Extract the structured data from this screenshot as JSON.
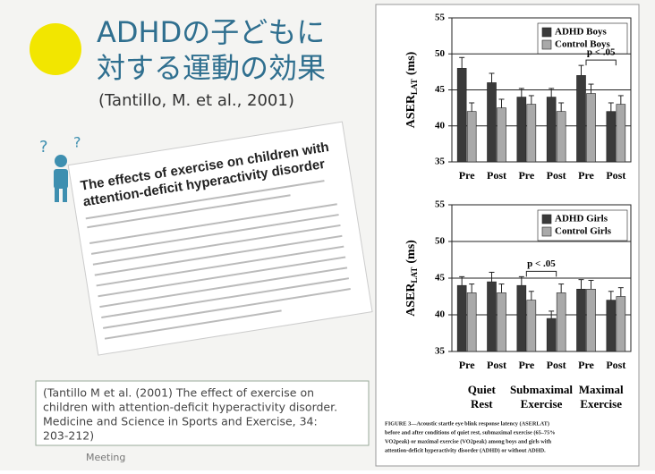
{
  "slide": {
    "title_lines": [
      "ADHDの子どもに",
      "対する運動の効果"
    ],
    "source": "(Tantillo, M. et al.,  2001)",
    "paper_title_lines": [
      "The effects of exercise on children with",
      "attention-deficit hyperactivity disorder"
    ],
    "citation_lines": [
      "(Tantillo M et al. (2001) The effect of exercise on",
      "children with attention-deficit hyperactivity disorder.",
      "Medicine and Science in Sports and Exercise, 34:",
      "203-212)"
    ],
    "footer": "Meeting",
    "figure_caption_lines": [
      "FIGURE 3—Acoustic startle eye blink response latency (ASERLAT)",
      "before and after conditions of quiet rest, submaximal exercise (65–75%",
      "VO2peak) or maximal exercise (VO2peak) among boys and girls with",
      "attention-deficit hyperactivity disorder (ADHD) or without ADHD."
    ]
  },
  "chart_data": [
    {
      "type": "bar",
      "ylabel": "ASER",
      "ylabel_sub": "LAT",
      "ylabel_unit": "(ms)",
      "categories": [
        "Pre",
        "Post",
        "Pre",
        "Post",
        "Pre",
        "Post"
      ],
      "series": [
        {
          "name": "ADHD Boys",
          "color": "#3a3a3a",
          "values": [
            48,
            46,
            44,
            44,
            47,
            42
          ],
          "errors": [
            1.5,
            1.3,
            1.2,
            1.2,
            1.4,
            1.2
          ]
        },
        {
          "name": "Control Boys",
          "color": "#a9a9a9",
          "values": [
            42,
            42.5,
            43,
            42,
            44.5,
            43
          ],
          "errors": [
            1.2,
            1.2,
            1.2,
            1.2,
            1.3,
            1.2
          ]
        }
      ],
      "ylim": [
        35,
        55
      ],
      "yticks": [
        35,
        40,
        45,
        50,
        55
      ],
      "grid": true,
      "legend": "upper right",
      "annotation": "p < .05"
    },
    {
      "type": "bar",
      "ylabel": "ASER",
      "ylabel_sub": "LAT",
      "ylabel_unit": "(ms)",
      "categories": [
        "Pre",
        "Post",
        "Pre",
        "Post",
        "Pre",
        "Post"
      ],
      "groups": [
        [
          "Quiet",
          "Rest"
        ],
        [
          "Submaximal",
          "Exercise"
        ],
        [
          "Maximal",
          "Exercise"
        ]
      ],
      "series": [
        {
          "name": "ADHD Girls",
          "color": "#3a3a3a",
          "values": [
            44,
            44.5,
            44,
            39.5,
            43.5,
            42
          ],
          "errors": [
            1.2,
            1.3,
            1.2,
            1,
            1.3,
            1.2
          ]
        },
        {
          "name": "Control Girls",
          "color": "#a9a9a9",
          "values": [
            43,
            43,
            42,
            43,
            43.5,
            42.5
          ],
          "errors": [
            1.2,
            1.2,
            1.2,
            1.2,
            1.2,
            1.2
          ]
        }
      ],
      "ylim": [
        35,
        55
      ],
      "yticks": [
        35,
        40,
        45,
        50,
        55
      ],
      "grid": true,
      "legend": "upper right",
      "annotation": "p < .05"
    }
  ]
}
